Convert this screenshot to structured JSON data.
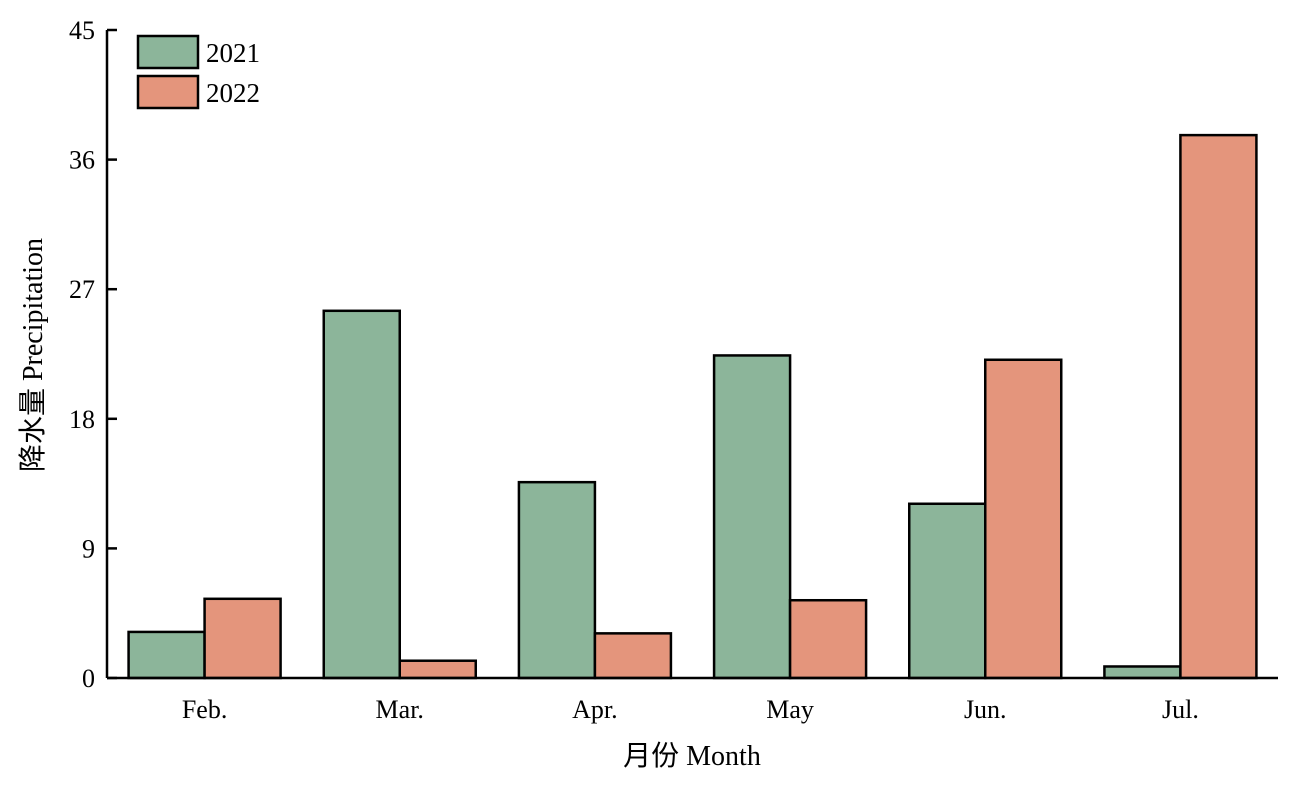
{
  "chart_data": {
    "type": "bar",
    "title": "",
    "xlabel": "月份 Month",
    "ylabel": "降水量 Precipitation",
    "categories": [
      "Feb.",
      "Mar.",
      "Apr.",
      "May",
      "Jun.",
      "Jul."
    ],
    "series": [
      {
        "name": "2021",
        "values": [
          3.2,
          25.5,
          13.6,
          22.4,
          12.1,
          0.8
        ],
        "color": "#8cb59a"
      },
      {
        "name": "2022",
        "values": [
          5.5,
          1.2,
          3.1,
          5.4,
          22.1,
          37.7
        ],
        "color": "#e4957c"
      }
    ],
    "ylim": [
      0,
      45
    ],
    "yticks": [
      "0",
      "9",
      "18",
      "27",
      "36",
      "45"
    ],
    "grid": false,
    "legend_position": "top-left"
  }
}
